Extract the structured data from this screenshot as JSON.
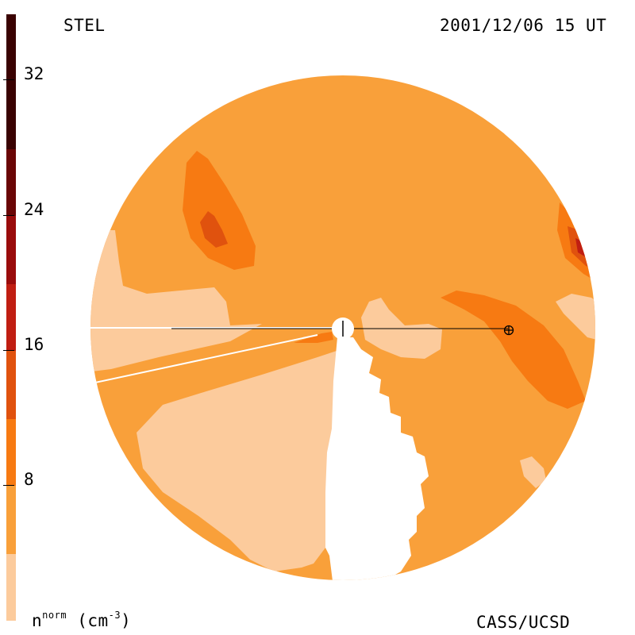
{
  "header": {
    "observatory": "STEL",
    "datetime": "2001/12/06 15 UT",
    "credit": "CASS/UCSD"
  },
  "colorbar": {
    "quantity": "n",
    "quantity_sup": "norm",
    "unit": "(cm",
    "unit_sup": "-3",
    "unit_close": ")",
    "ticks": [
      "32",
      "24",
      "16",
      "8"
    ],
    "levels": [
      {
        "range": "0-4",
        "color": "#fccb9c"
      },
      {
        "range": "4-12",
        "color": "#f9a03a"
      },
      {
        "range": "12-16",
        "color": "#f77a12"
      },
      {
        "range": "16-20",
        "color": "#e0520e"
      },
      {
        "range": "20-24",
        "color": "#c01e12"
      },
      {
        "range": "24-28",
        "color": "#9a0c0c"
      },
      {
        "range": "28-32",
        "color": "#6a0606"
      },
      {
        "range": "32-36",
        "color": "#3a0202"
      }
    ]
  },
  "map": {
    "earth_symbol": "⊕",
    "sun_symbol": "sun-icon",
    "colors": {
      "background_level": "#f9a03a",
      "low_level": "#fccb9c",
      "mid_level": "#f77a12",
      "high_level": "#e0520e",
      "peak_level": "#c01e12"
    }
  }
}
